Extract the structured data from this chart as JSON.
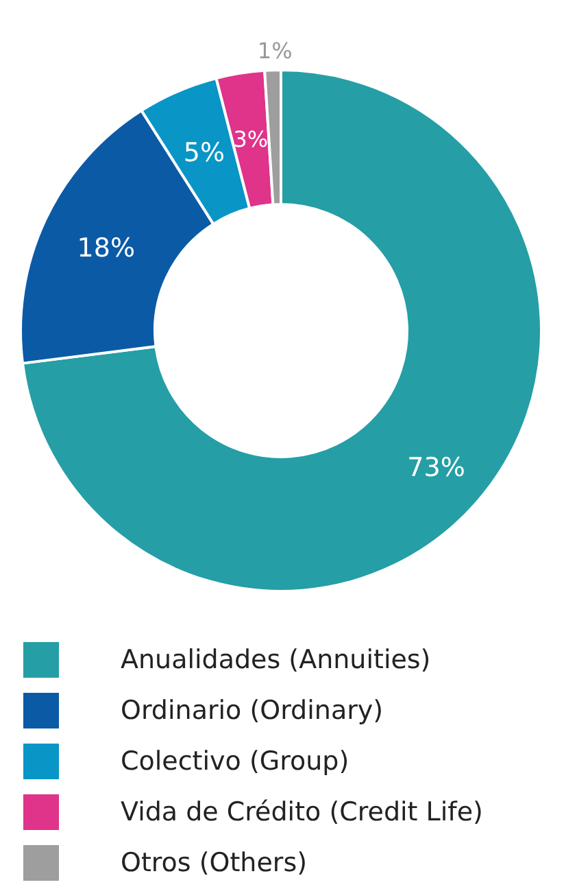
{
  "chart_data": {
    "type": "donut",
    "categories": [
      "Anualidades (Annuities)",
      "Ordinario (Ordinary)",
      "Colectivo (Group)",
      "Vida de Crédito (Credit Life)",
      "Otros (Others)"
    ],
    "values": [
      73,
      18,
      5,
      3,
      1
    ],
    "value_labels": [
      "73%",
      "18%",
      "5%",
      "3%",
      "1%"
    ],
    "colors": [
      "#259ea6",
      "#0b5aa6",
      "#0995c6",
      "#e0338a",
      "#9e9e9e"
    ],
    "legend": "bottom"
  }
}
